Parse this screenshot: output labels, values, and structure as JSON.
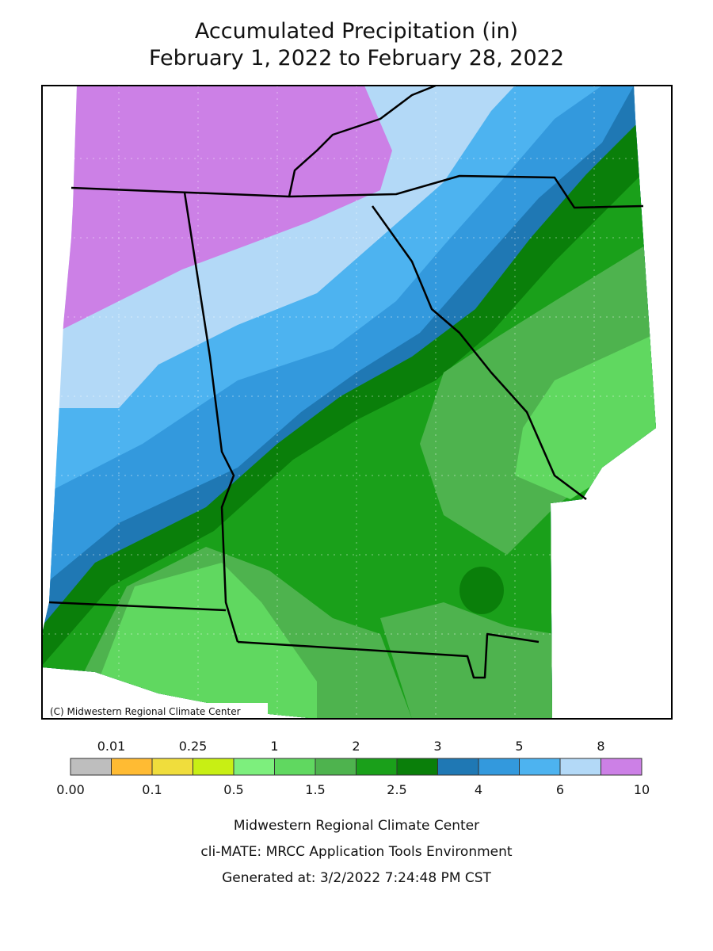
{
  "header": {
    "title": [
      "Accumulated Precipitation (in)",
      "February 1, 2022 to February 28, 2022"
    ]
  },
  "map": {
    "credit": "(C) Midwestern Regional Climate Center"
  },
  "legend": {
    "breaks": [
      "0.00",
      "0.01",
      "0.1",
      "0.25",
      "0.5",
      "1",
      "1.5",
      "2",
      "2.5",
      "3",
      "4",
      "5",
      "6",
      "8",
      "10"
    ],
    "colors": [
      "#bebebe",
      "#ffbb33",
      "#f0dd3c",
      "#c8ef14",
      "#7def7d",
      "#60d860",
      "#4eb34e",
      "#1aa01a",
      "#0a7f0a",
      "#1f78b4",
      "#3399dd",
      "#4db3f0",
      "#b3d9f7",
      "#cc80e6"
    ]
  },
  "footer": [
    "Midwestern Regional Climate Center",
    "cli-MATE: MRCC Application Tools Environment",
    "Generated at: 3/2/2022 7:24:48 PM CST"
  ]
}
